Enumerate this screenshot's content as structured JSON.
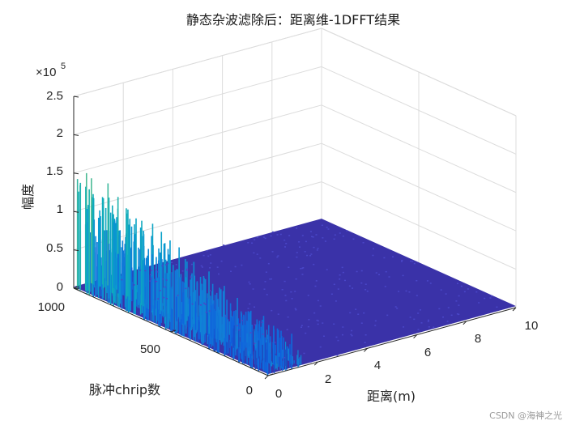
{
  "chart_data": {
    "type": "surface",
    "title": "静态杂波滤除后：距离维-1DFFT结果",
    "xlabel": "距离(m)",
    "ylabel": "脉冲chrip数",
    "zlabel": "幅度",
    "exponent_label": "×10",
    "exponent_power": "5",
    "x_ticks": [
      "0",
      "2",
      "4",
      "6",
      "8",
      "10"
    ],
    "y_ticks": [
      "0",
      "500",
      "1000"
    ],
    "z_ticks": [
      "0",
      "0.5",
      "1",
      "1.5",
      "2",
      "2.5"
    ],
    "xlim": [
      0,
      10
    ],
    "ylim": [
      0,
      1000
    ],
    "zlim": [
      0,
      2.5
    ],
    "zscale": 100000,
    "grid": true,
    "colormap": "parula",
    "ridges": [
      {
        "range_m": 0.15,
        "max_amplitude": 1.6
      },
      {
        "range_m": 0.85,
        "max_amplitude": 1.45
      }
    ],
    "noise_floor": 0.02
  },
  "watermark": "CSDN @海神之光"
}
